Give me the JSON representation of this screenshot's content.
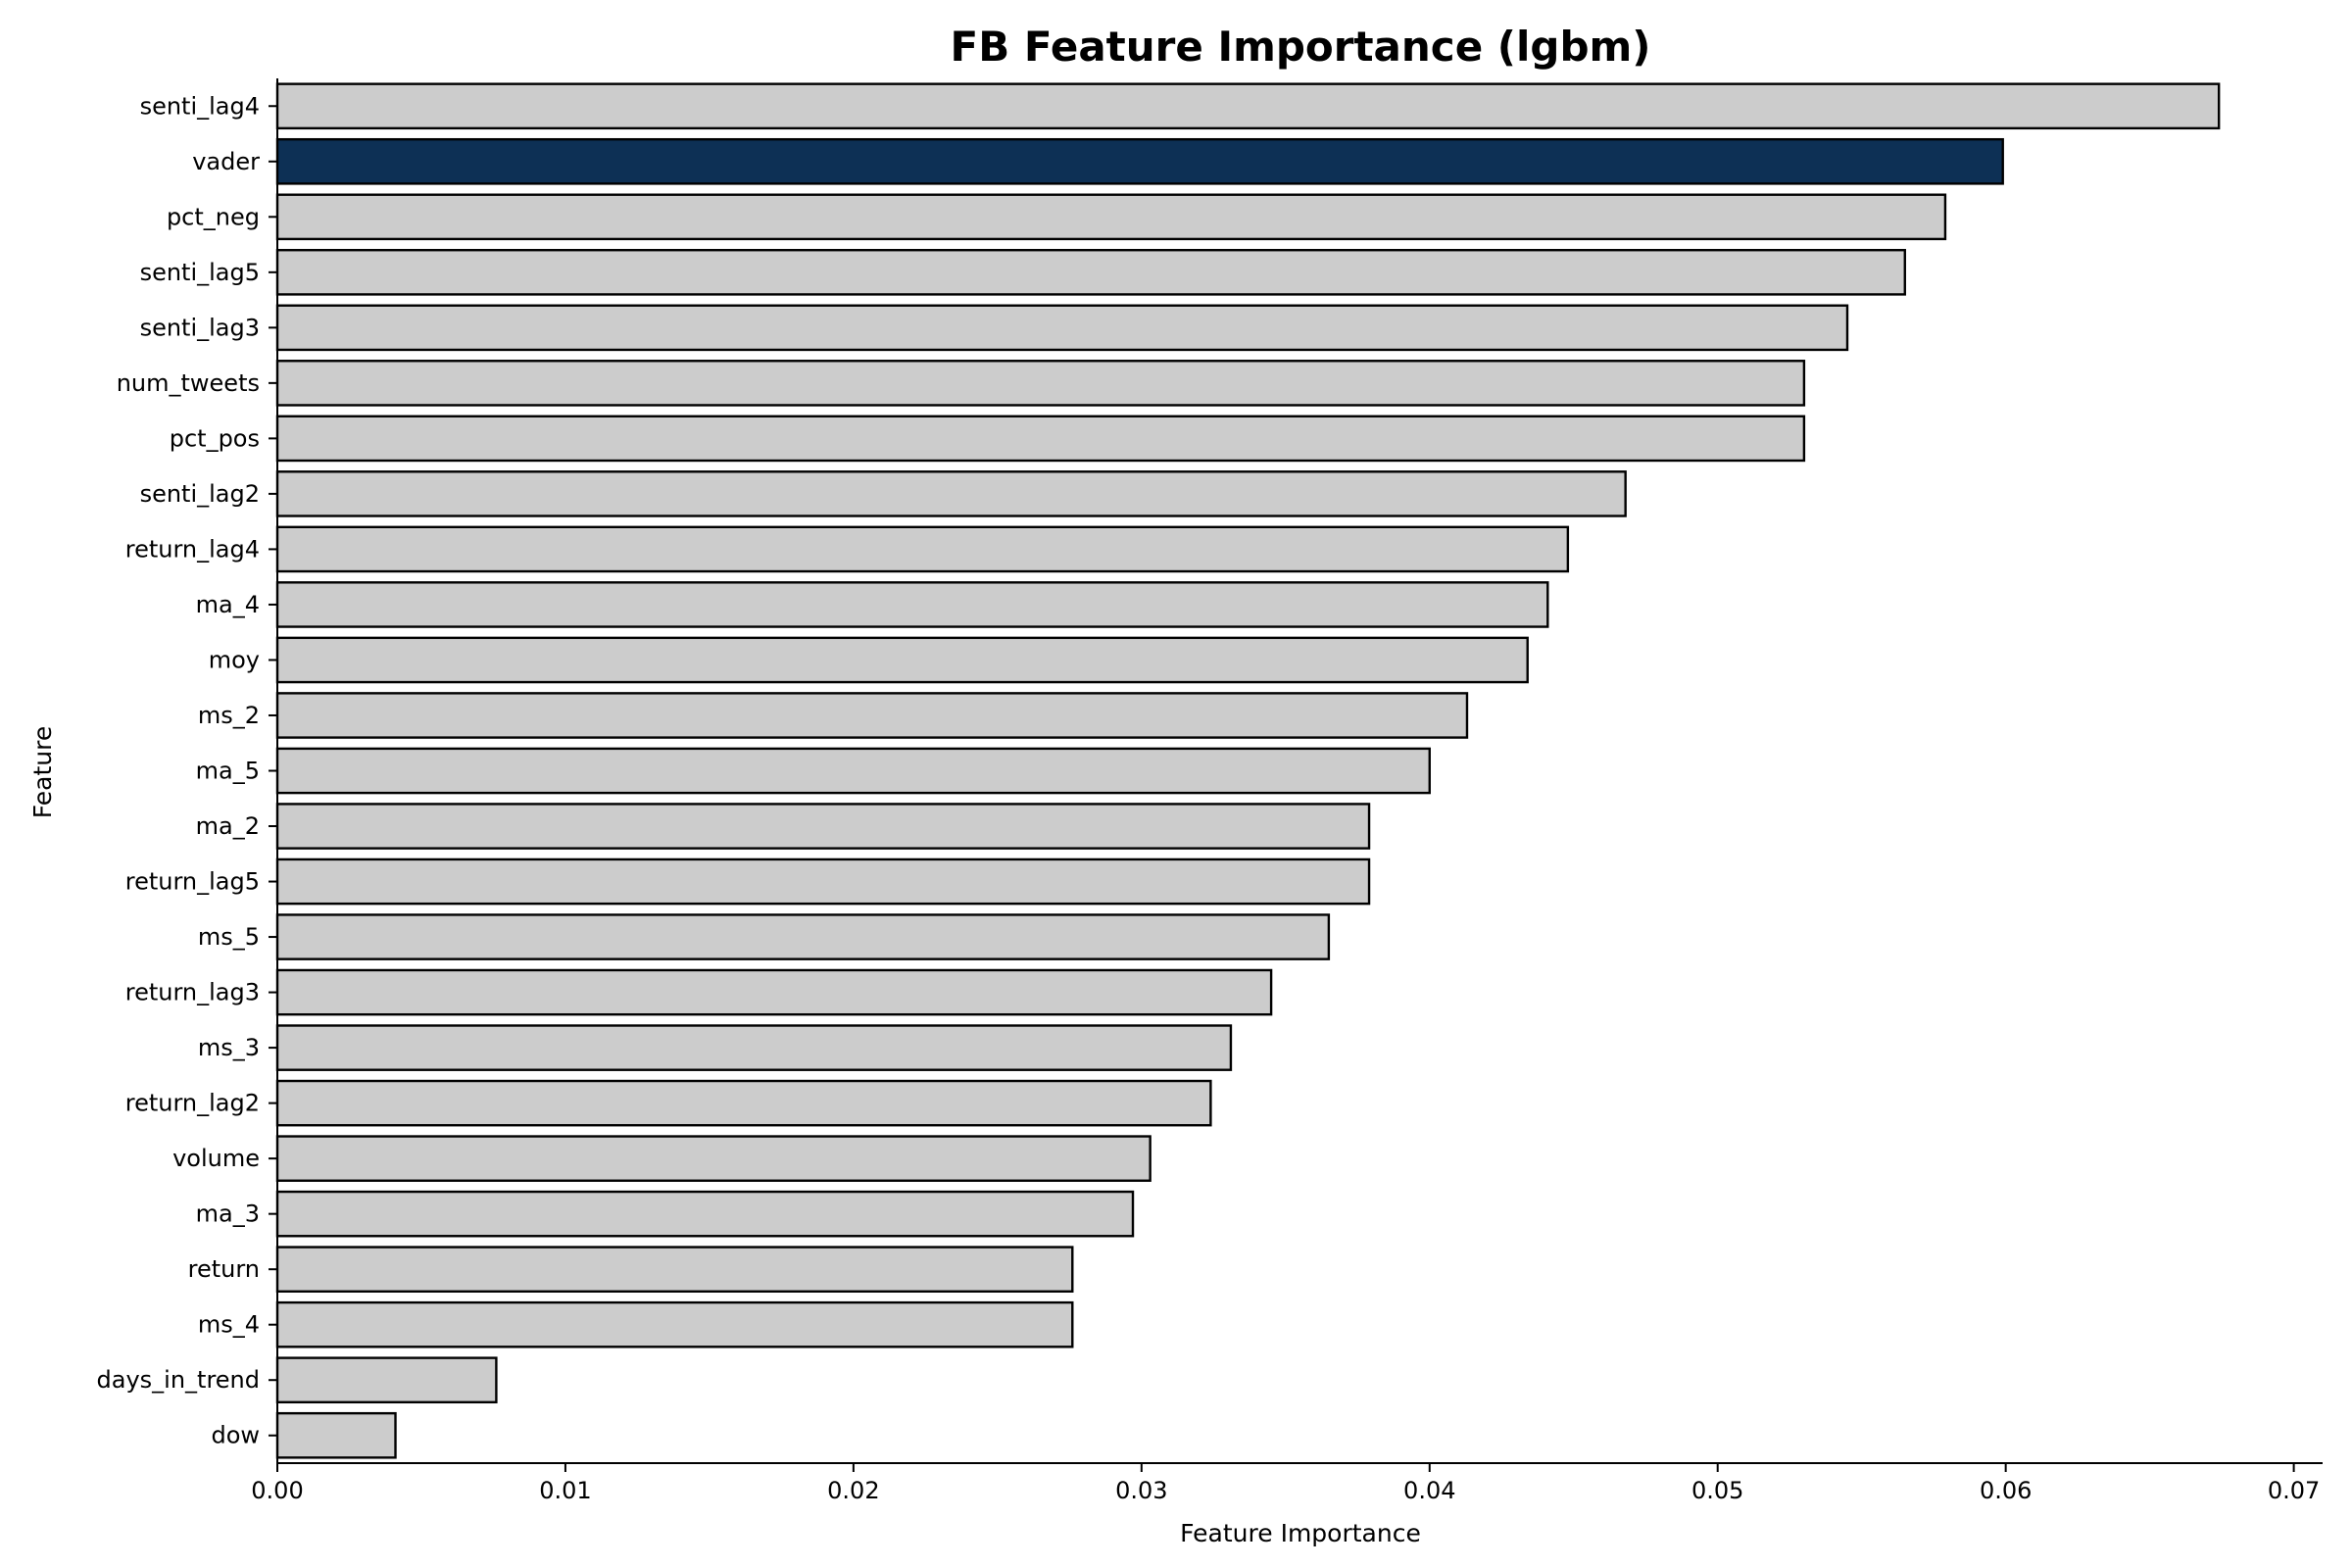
{
  "chart_data": {
    "type": "bar",
    "orientation": "horizontal",
    "title": "FB Feature Importance (lgbm)",
    "xlabel": "Feature Importance",
    "ylabel": "Feature",
    "xlim": [
      0,
      0.071
    ],
    "xticks": [
      0.0,
      0.01,
      0.02,
      0.03,
      0.04,
      0.05,
      0.06,
      0.07
    ],
    "xtick_labels": [
      "0.00",
      "0.01",
      "0.02",
      "0.03",
      "0.04",
      "0.05",
      "0.06",
      "0.07"
    ],
    "grid": false,
    "categories": [
      "senti_lag4",
      "vader",
      "pct_neg",
      "senti_lag5",
      "senti_lag3",
      "num_tweets",
      "pct_pos",
      "senti_lag2",
      "return_lag4",
      "ma_4",
      "moy",
      "ms_2",
      "ma_5",
      "ma_2",
      "return_lag5",
      "ms_5",
      "return_lag3",
      "ms_3",
      "return_lag2",
      "volume",
      "ma_3",
      "return",
      "ms_4",
      "days_in_trend",
      "dow"
    ],
    "values": [
      0.0674,
      0.0599,
      0.0579,
      0.0565,
      0.0545,
      0.053,
      0.053,
      0.0468,
      0.0448,
      0.0441,
      0.0434,
      0.0413,
      0.04,
      0.0379,
      0.0379,
      0.0365,
      0.0345,
      0.0331,
      0.0324,
      0.0303,
      0.0297,
      0.0276,
      0.0276,
      0.0076,
      0.0041
    ],
    "highlight": "vader",
    "colors": {
      "default_bar": "#cccccc",
      "highlight_bar": "#0d3055",
      "edge": "#000000"
    }
  }
}
